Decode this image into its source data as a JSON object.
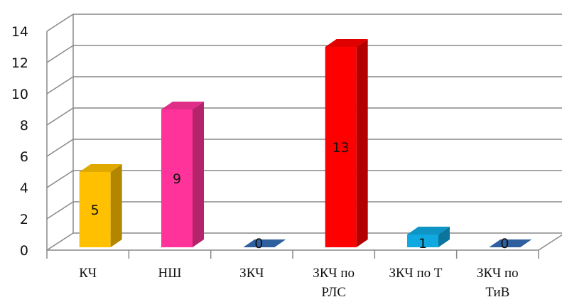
{
  "chart_data": {
    "type": "bar",
    "categories": [
      [
        "КЧ"
      ],
      [
        "НШ"
      ],
      [
        "ЗКЧ"
      ],
      [
        "ЗКЧ по",
        "РЛС"
      ],
      [
        "ЗКЧ по Т"
      ],
      [
        "ЗКЧ по",
        "ТиВ"
      ]
    ],
    "values": [
      5,
      9,
      0,
      13,
      1,
      0
    ],
    "colors": [
      "#FFC000",
      "#FF3399",
      "#2E5F9E",
      "#FF0000",
      "#10A8E0",
      "#2E5F9E"
    ],
    "ylim": [
      0,
      14
    ],
    "yticks": [
      0,
      2,
      4,
      6,
      8,
      10,
      12,
      14
    ],
    "grid": true,
    "legend": "none",
    "style": "3d-column"
  }
}
